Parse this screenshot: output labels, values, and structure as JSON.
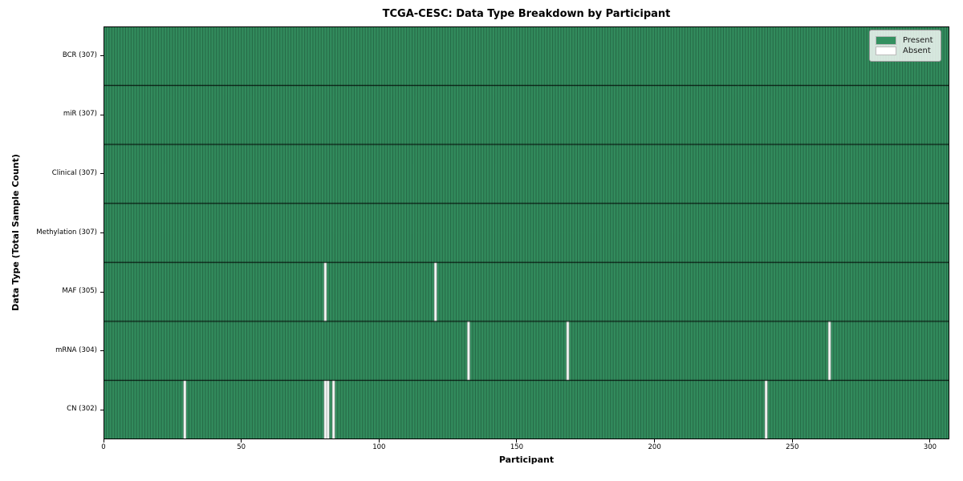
{
  "chart_data": {
    "type": "heatmap",
    "title": "TCGA-CESC: Data Type Breakdown by Participant",
    "xlabel": "Participant",
    "ylabel": "Data Type (Total Sample Count)",
    "n_participants": 307,
    "xlim": [
      0,
      307
    ],
    "x_ticks": [
      0,
      50,
      100,
      150,
      200,
      250,
      300
    ],
    "rows": [
      {
        "label": "BCR (307)",
        "data_type": "BCR",
        "total": 307,
        "absent_participants": []
      },
      {
        "label": "miR (307)",
        "data_type": "miR",
        "total": 307,
        "absent_participants": []
      },
      {
        "label": "Clinical (307)",
        "data_type": "Clinical",
        "total": 307,
        "absent_participants": []
      },
      {
        "label": "Methylation (307)",
        "data_type": "Methylation",
        "total": 307,
        "absent_participants": []
      },
      {
        "label": "MAF (305)",
        "data_type": "MAF",
        "total": 305,
        "absent_participants": [
          80,
          120
        ]
      },
      {
        "label": "mRNA (304)",
        "data_type": "mRNA",
        "total": 304,
        "absent_participants": [
          132,
          168,
          263
        ]
      },
      {
        "label": "CN (302)",
        "data_type": "CN",
        "total": 302,
        "absent_participants": [
          29,
          80,
          81,
          83,
          240
        ]
      }
    ],
    "legend": [
      {
        "label": "Present",
        "color": "#349060"
      },
      {
        "label": "Absent",
        "color": "#ffffff"
      }
    ],
    "colors": {
      "present": "#349060",
      "absent": "#ffffff",
      "cell_edge_alpha": 0.5,
      "row_separator": "#000000",
      "frame": "#000000"
    },
    "grid": false,
    "legend_position": "top-right"
  }
}
